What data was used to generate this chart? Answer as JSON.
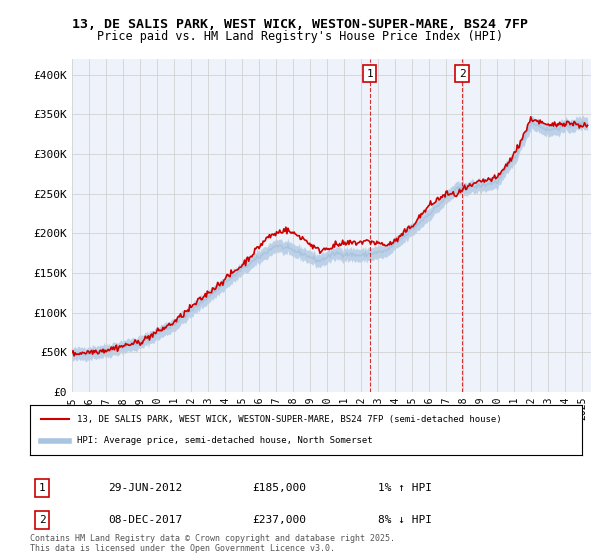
{
  "title1": "13, DE SALIS PARK, WEST WICK, WESTON-SUPER-MARE, BS24 7FP",
  "title2": "Price paid vs. HM Land Registry's House Price Index (HPI)",
  "ylabel_ticks": [
    "£0",
    "£50K",
    "£100K",
    "£150K",
    "£200K",
    "£250K",
    "£300K",
    "£350K",
    "£400K"
  ],
  "ytick_values": [
    0,
    50000,
    100000,
    150000,
    200000,
    250000,
    300000,
    350000,
    400000
  ],
  "ylim": [
    0,
    420000
  ],
  "xlim_start": 1995.0,
  "xlim_end": 2025.5,
  "xtick_years": [
    1995,
    1996,
    1997,
    1998,
    1999,
    2000,
    2001,
    2002,
    2003,
    2004,
    2005,
    2006,
    2007,
    2008,
    2009,
    2010,
    2011,
    2012,
    2013,
    2014,
    2015,
    2016,
    2017,
    2018,
    2019,
    2020,
    2021,
    2022,
    2023,
    2024,
    2025
  ],
  "legend_line1": "13, DE SALIS PARK, WEST WICK, WESTON-SUPER-MARE, BS24 7FP (semi-detached house)",
  "legend_line2": "HPI: Average price, semi-detached house, North Somerset",
  "marker1_year": 2012.49,
  "marker1_value": 185000,
  "marker1_label": "1",
  "marker2_year": 2017.93,
  "marker2_value": 237000,
  "marker2_label": "2",
  "info1_label": "1",
  "info1_date": "29-JUN-2012",
  "info1_price": "£185,000",
  "info1_hpi": "1% ↑ HPI",
  "info2_label": "2",
  "info2_date": "08-DEC-2017",
  "info2_price": "£237,000",
  "info2_hpi": "8% ↓ HPI",
  "footer": "Contains HM Land Registry data © Crown copyright and database right 2025.\nThis data is licensed under the Open Government Licence v3.0.",
  "hpi_color": "#a8c4e0",
  "price_color": "#cc0000",
  "background_color": "#ffffff",
  "plot_bg_color": "#eef2fa",
  "grid_color": "#cccccc"
}
